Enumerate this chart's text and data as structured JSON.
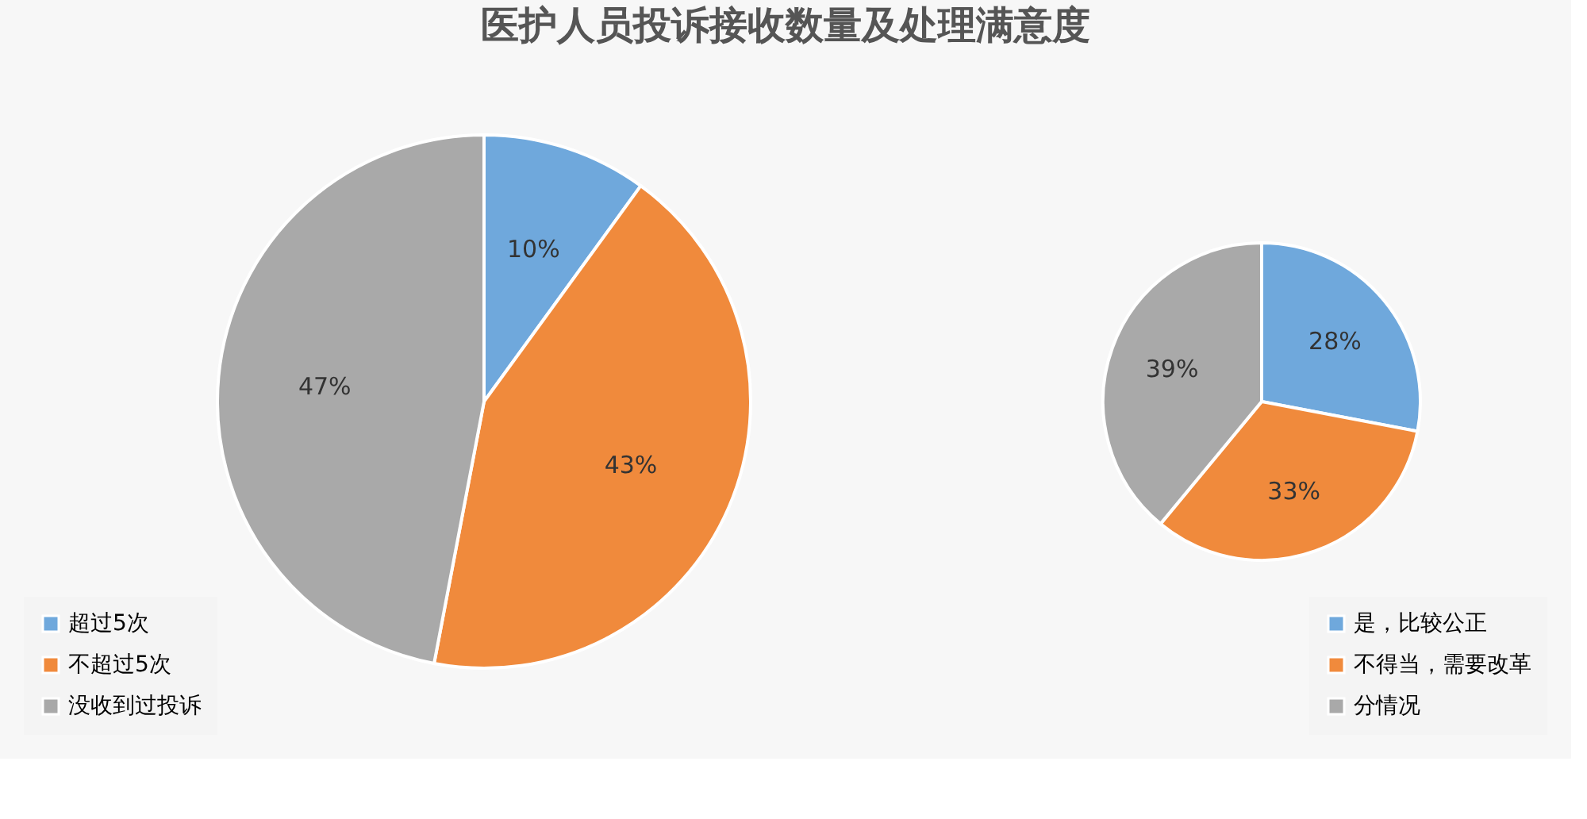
{
  "chart_data": [
    {
      "type": "pie",
      "title": "医护人员投诉接收数量及处理满意度",
      "categories": [
        "超过5次",
        "不超过5次",
        "没收到过投诉"
      ],
      "values": [
        10,
        43,
        47
      ],
      "colors": [
        "#6fa8dc",
        "#f08a3c",
        "#a9a9a9"
      ],
      "value_labels": [
        "10%",
        "43%",
        "47%"
      ],
      "legend": "bottom left"
    },
    {
      "type": "pie",
      "categories": [
        "是，比较公正",
        "不得当，需要改革",
        "分情况"
      ],
      "values": [
        28,
        33,
        39
      ],
      "colors": [
        "#6fa8dc",
        "#f08a3c",
        "#a9a9a9"
      ],
      "value_labels": [
        "28%",
        "33%",
        "39%"
      ],
      "legend": "bottom right"
    }
  ]
}
